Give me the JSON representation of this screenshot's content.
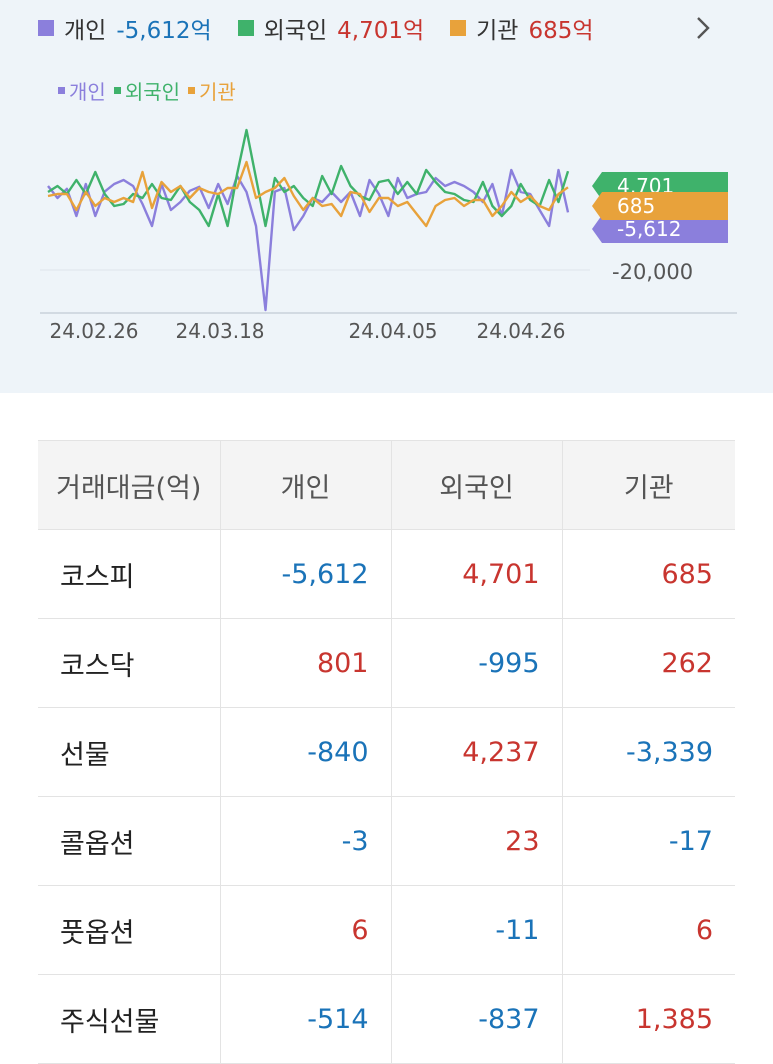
{
  "summary": [
    {
      "label": "개인",
      "value": "-5,612억",
      "color": "#8b7fdc",
      "sign": "neg"
    },
    {
      "label": "외국인",
      "value": "4,701억",
      "color": "#3fb26b",
      "sign": "pos"
    },
    {
      "label": "기관",
      "value": "685억",
      "color": "#e8a23b",
      "sign": "pos"
    }
  ],
  "chart_data": {
    "type": "line",
    "legend": [
      "개인",
      "외국인",
      "기관"
    ],
    "x_ticks": [
      "24.02.26",
      "24.03.18",
      "24.04.05",
      "24.04.26"
    ],
    "y_tick_labels": [
      "-20,000"
    ],
    "end_labels": [
      {
        "series": "외국인",
        "text": "4,701",
        "color": "#3fb26b"
      },
      {
        "series": "개인",
        "text": "-5,612",
        "color": "#8b7fdc"
      },
      {
        "series": "기관",
        "text": "685",
        "color": "#e8a23b"
      }
    ],
    "ylim": [
      -25000,
      15000
    ],
    "series": [
      {
        "name": "개인",
        "color": "#8b7fdc",
        "values": [
          1000,
          -2000,
          300,
          -6500,
          1500,
          -6500,
          -400,
          1500,
          2500,
          1000,
          -3500,
          -9000,
          1500,
          -5000,
          -3000,
          -200,
          800,
          -4500,
          1500,
          -3500,
          3500,
          -500,
          -9000,
          -30000,
          -400,
          500,
          -10000,
          -6500,
          -2000,
          -3000,
          -500,
          -3000,
          -500,
          -6500,
          2500,
          -1000,
          -6500,
          3000,
          -2000,
          -1000,
          -500,
          3000,
          1000,
          2000,
          1000,
          -500,
          -3000,
          1500,
          -6500,
          5000,
          -500,
          -1000,
          -5000,
          -9000,
          5000,
          -5612
        ]
      },
      {
        "name": "외국인",
        "color": "#3fb26b",
        "values": [
          -500,
          1000,
          -1000,
          2500,
          -1000,
          4500,
          -1000,
          -4000,
          -3500,
          -1000,
          -2000,
          1500,
          -2000,
          -2500,
          1000,
          -3000,
          -5000,
          -9000,
          -1000,
          -9000,
          4000,
          15000,
          3000,
          -9000,
          3000,
          -500,
          1000,
          -2000,
          -4000,
          3500,
          -1000,
          6000,
          1000,
          -1500,
          -2500,
          2000,
          2500,
          -1000,
          2000,
          -1000,
          5000,
          2000,
          -500,
          -1000,
          -2500,
          -3000,
          2000,
          -4000,
          -6500,
          -4000,
          1500,
          -2500,
          -4000,
          2500,
          -3000,
          4701
        ]
      },
      {
        "name": "기관",
        "color": "#e8a23b",
        "values": [
          -1500,
          -1000,
          -1000,
          -5000,
          -500,
          -4000,
          -2000,
          -3000,
          -2000,
          -3000,
          4500,
          -4500,
          2000,
          -500,
          1000,
          -2000,
          500,
          -500,
          -1000,
          500,
          500,
          7000,
          -2000,
          -500,
          500,
          3000,
          -1500,
          -5000,
          -2000,
          -4000,
          -3500,
          -6500,
          -500,
          -1000,
          -5500,
          -2000,
          -2000,
          -4000,
          -3000,
          -6000,
          -9000,
          -4000,
          -2500,
          -2000,
          -4000,
          -2500,
          -2500,
          -6500,
          -4000,
          -500,
          -3000,
          -1500,
          -4000,
          -5000,
          -1000,
          685
        ]
      }
    ]
  },
  "table": {
    "headers": [
      "거래대금(억)",
      "개인",
      "외국인",
      "기관"
    ],
    "rows": [
      {
        "name": "코스피",
        "cells": [
          {
            "v": "-5,612",
            "s": "neg"
          },
          {
            "v": "4,701",
            "s": "pos"
          },
          {
            "v": "685",
            "s": "pos"
          }
        ]
      },
      {
        "name": "코스닥",
        "cells": [
          {
            "v": "801",
            "s": "pos"
          },
          {
            "v": "-995",
            "s": "neg"
          },
          {
            "v": "262",
            "s": "pos"
          }
        ]
      },
      {
        "name": "선물",
        "cells": [
          {
            "v": "-840",
            "s": "neg"
          },
          {
            "v": "4,237",
            "s": "pos"
          },
          {
            "v": "-3,339",
            "s": "neg"
          }
        ]
      },
      {
        "name": "콜옵션",
        "cells": [
          {
            "v": "-3",
            "s": "neg"
          },
          {
            "v": "23",
            "s": "pos"
          },
          {
            "v": "-17",
            "s": "neg"
          }
        ]
      },
      {
        "name": "풋옵션",
        "cells": [
          {
            "v": "6",
            "s": "pos"
          },
          {
            "v": "-11",
            "s": "neg"
          },
          {
            "v": "6",
            "s": "pos"
          }
        ]
      },
      {
        "name": "주식선물",
        "cells": [
          {
            "v": "-514",
            "s": "neg"
          },
          {
            "v": "-837",
            "s": "neg"
          },
          {
            "v": "1,385",
            "s": "pos"
          }
        ]
      }
    ]
  }
}
